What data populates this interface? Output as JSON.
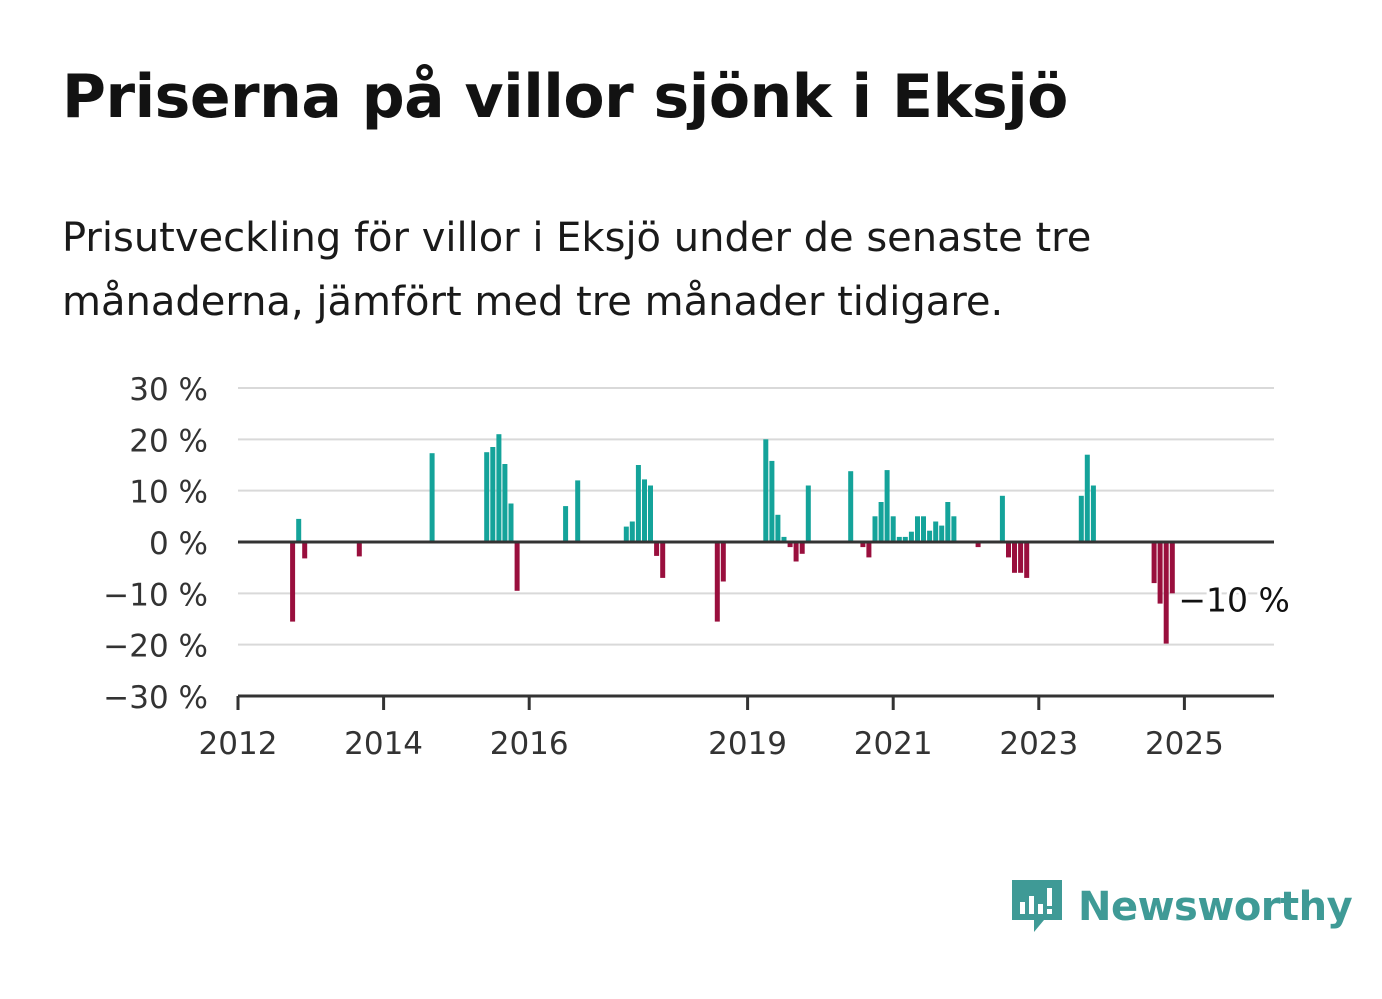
{
  "title": "Priserna på villor sjönk i Eksjö",
  "subtitle": "Prisutveckling för villor i Eksjö under de senaste tre månaderna, jämfört med tre månader tidigare.",
  "brand": {
    "name": "Newsworthy",
    "icon": "newsworthy-logo-icon",
    "color": "#3f9a96"
  },
  "colors": {
    "positive": "#14a39a",
    "negative": "#990f3d",
    "grid": "#d9d9d9",
    "axis": "#333333"
  },
  "chart_data": {
    "type": "bar",
    "x_type": "date",
    "ylim": [
      -30,
      30
    ],
    "y_ticks": [
      30,
      20,
      10,
      0,
      -10,
      -20,
      -30
    ],
    "y_tick_labels": [
      "30 %",
      "20 %",
      "10 %",
      "0 %",
      "−10 %",
      "−20 %",
      "−30 %"
    ],
    "x_tick_labels": [
      "2012",
      "2014",
      "2016",
      "2019",
      "2021",
      "2023",
      "2025"
    ],
    "x_ticks": [
      "2012-01",
      "2014-01",
      "2016-01",
      "2019-01",
      "2021-01",
      "2023-01",
      "2025-01"
    ],
    "grid": true,
    "annotation": {
      "text": "−10 %",
      "month": "2025-01"
    },
    "series": [
      {
        "x": [
          "2012-10",
          "2012-11",
          "2012-12",
          "2013-09",
          "2014-09",
          "2015-06",
          "2015-07",
          "2015-08",
          "2015-09",
          "2015-10",
          "2015-11",
          "2016-07",
          "2016-09",
          "2017-05",
          "2017-06",
          "2017-07",
          "2017-08",
          "2017-09",
          "2017-10",
          "2017-11",
          "2018-08",
          "2018-09",
          "2019-04",
          "2019-05",
          "2019-06",
          "2019-07",
          "2019-08",
          "2019-09",
          "2019-10",
          "2019-11",
          "2020-06",
          "2020-08",
          "2020-09",
          "2020-10",
          "2020-11",
          "2020-12",
          "2021-01",
          "2021-02",
          "2021-03",
          "2021-04",
          "2021-05",
          "2021-06",
          "2021-07",
          "2021-08",
          "2021-09",
          "2021-10",
          "2021-11",
          "2022-03",
          "2022-07",
          "2022-08",
          "2022-09",
          "2022-10",
          "2022-11",
          "2023-08",
          "2023-09",
          "2023-10",
          "2024-08",
          "2024-09",
          "2024-10",
          "2024-11",
          "2024-12",
          "2025-08"
        ],
        "values": [
          -15.5,
          4.5,
          -3.2,
          -2.8,
          17.3,
          17.5,
          18.5,
          21,
          15.2,
          7.5,
          -9.5,
          7,
          12,
          3,
          4,
          15,
          12.2,
          11,
          -2.7,
          -7,
          -15.5,
          -7.7,
          20,
          15.8,
          5.3,
          1,
          -1,
          -3.8,
          -2.3,
          11,
          13.8,
          -1,
          -3,
          5,
          7.8,
          14,
          5,
          1,
          1,
          2,
          5,
          5,
          2.2,
          4,
          3.2,
          7.8,
          5,
          -1,
          9,
          -3,
          -6,
          -6,
          -7,
          9,
          17,
          11,
          -8,
          -12,
          -19.8,
          -10,
          0,
          0
        ]
      }
    ]
  }
}
